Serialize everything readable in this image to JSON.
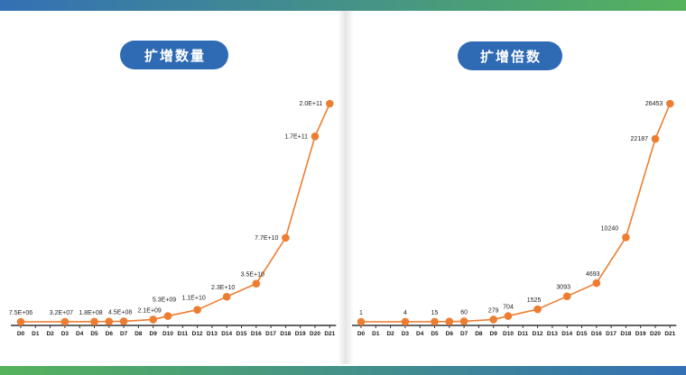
{
  "titles": {
    "left": "扩增数量",
    "right": "扩增倍数"
  },
  "theme": {
    "bar_blue": "#3370b5",
    "bar_green": "#55b35c",
    "pill_blue": "#2f6bb5",
    "line_orange": "#ed7d31",
    "axis_color": "#333333",
    "label_color": "#222222"
  },
  "chart_data": [
    {
      "type": "line",
      "title": "扩增数量",
      "legend": "none",
      "grid": false,
      "ylim": [
        0,
        200000000000
      ],
      "x_categories": [
        "D0",
        "D1",
        "D2",
        "D3",
        "D4",
        "D5",
        "D6",
        "D7",
        "D8",
        "D9",
        "D10",
        "D11",
        "D12",
        "D13",
        "D14",
        "D15",
        "D16",
        "D17",
        "D18",
        "D19",
        "D20",
        "D21"
      ],
      "points": [
        {
          "day": 0,
          "value": 7500000,
          "label": "7.5E+06"
        },
        {
          "day": 3,
          "value": 32000000,
          "label": "3.2E+07"
        },
        {
          "day": 5,
          "value": 180000000,
          "label": "1.8E+08"
        },
        {
          "day": 6,
          "value": 300000000,
          "label": ""
        },
        {
          "day": 7,
          "value": 450000000,
          "label": "4.5E+08"
        },
        {
          "day": 9,
          "value": 2100000000,
          "label": "2.1E+09"
        },
        {
          "day": 10,
          "value": 5300000000,
          "label": "5.3E+09",
          "ldy": -8
        },
        {
          "day": 12,
          "value": 11000000000,
          "label": "1.1E+10",
          "ldy": -3
        },
        {
          "day": 14,
          "value": 23000000000,
          "label": "2.3E+10"
        },
        {
          "day": 16,
          "value": 35000000000,
          "label": "3.5E+10"
        },
        {
          "day": 18,
          "value": 77000000000,
          "label": "7.7E+10",
          "side": "left"
        },
        {
          "day": 20,
          "value": 170000000000,
          "label": "1.7E+11",
          "side": "left"
        },
        {
          "day": 21,
          "value": 200000000000,
          "label": "2.0E+11",
          "side": "left"
        }
      ]
    },
    {
      "type": "line",
      "title": "扩增倍数",
      "legend": "none",
      "grid": false,
      "ylim": [
        0,
        26453
      ],
      "x_categories": [
        "D0",
        "D1",
        "D2",
        "D3",
        "D4",
        "D5",
        "D6",
        "D7",
        "D8",
        "D9",
        "D10",
        "D11",
        "D12",
        "D13",
        "D14",
        "D15",
        "D16",
        "D17",
        "D18",
        "D19",
        "D20",
        "D21"
      ],
      "points": [
        {
          "day": 0,
          "value": 1,
          "label": "1"
        },
        {
          "day": 3,
          "value": 4,
          "label": "4"
        },
        {
          "day": 5,
          "value": 15,
          "label": "15"
        },
        {
          "day": 6,
          "value": 30,
          "label": ""
        },
        {
          "day": 7,
          "value": 60,
          "label": "60"
        },
        {
          "day": 9,
          "value": 279,
          "label": "279"
        },
        {
          "day": 10,
          "value": 704,
          "label": "704"
        },
        {
          "day": 12,
          "value": 1525,
          "label": "1525"
        },
        {
          "day": 14,
          "value": 3093,
          "label": "3093"
        },
        {
          "day": 16,
          "value": 4693,
          "label": "4693"
        },
        {
          "day": 18,
          "value": 10240,
          "label": "10240",
          "ldx": -14
        },
        {
          "day": 20,
          "value": 22187,
          "label": "22187",
          "side": "left"
        },
        {
          "day": 21,
          "value": 26453,
          "label": "26453",
          "side": "left"
        }
      ]
    }
  ]
}
